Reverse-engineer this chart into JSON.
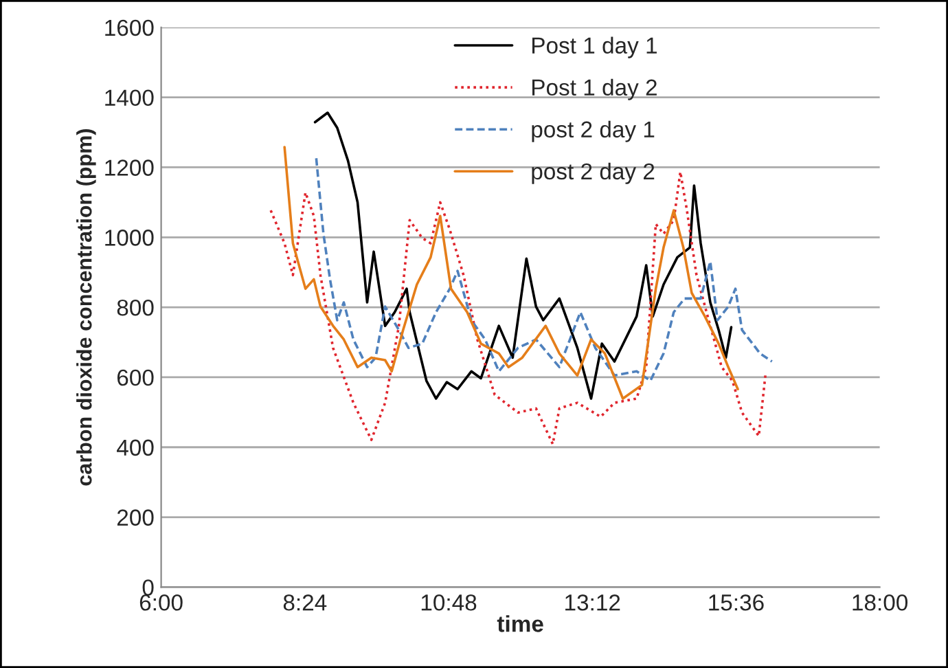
{
  "chart_data": {
    "type": "line",
    "xlabel": "time",
    "ylabel": "carbon dioxide concentration (ppm)",
    "xlim": [
      6,
      18
    ],
    "xticks": [
      {
        "value": 6,
        "label": "6:00"
      },
      {
        "value": 8.4,
        "label": "8:24"
      },
      {
        "value": 10.8,
        "label": "10:48"
      },
      {
        "value": 13.2,
        "label": "13:12"
      },
      {
        "value": 15.6,
        "label": "15:36"
      },
      {
        "value": 18,
        "label": "18:00"
      }
    ],
    "ylim": [
      0,
      1600
    ],
    "yticks": [
      0,
      200,
      400,
      600,
      800,
      1000,
      1200,
      1400,
      1600
    ],
    "grid": "y",
    "legend": "top",
    "marker": "none",
    "series": [
      {
        "name": "Post 1 day 1",
        "color": "#000000",
        "line_style": "solid",
        "x": [
          8.57,
          8.78,
          8.94,
          9.12,
          9.28,
          9.44,
          9.55,
          9.74,
          9.9,
          10.1,
          10.15,
          10.43,
          10.59,
          10.77,
          10.95,
          11.18,
          11.34,
          11.64,
          11.87,
          12.1,
          12.26,
          12.38,
          12.65,
          12.95,
          13.18,
          13.36,
          13.57,
          13.94,
          14.1,
          14.21,
          14.39,
          14.62,
          14.83,
          14.9,
          15.01,
          15.17,
          15.31,
          15.43,
          15.52
        ],
        "values": [
          1329,
          1356,
          1313,
          1219,
          1100,
          814,
          959,
          747,
          786,
          853,
          786,
          590,
          539,
          586,
          566,
          617,
          597,
          747,
          656,
          939,
          802,
          763,
          825,
          684,
          539,
          696,
          645,
          774,
          920,
          774,
          865,
          943,
          971,
          1148,
          983,
          814,
          735,
          656,
          743
        ]
      },
      {
        "name": "Post 1 day 2",
        "color": "#e0262e",
        "line_style": "dotted",
        "x": [
          7.83,
          8.06,
          8.2,
          8.41,
          8.55,
          8.66,
          8.87,
          9.21,
          9.51,
          9.74,
          9.97,
          10.15,
          10.36,
          10.5,
          10.66,
          10.82,
          11.05,
          11.28,
          11.57,
          11.96,
          12.26,
          12.54,
          12.65,
          12.95,
          13.34,
          13.57,
          13.94,
          14.1,
          14.26,
          14.39,
          14.56,
          14.67,
          14.78,
          14.94,
          15.17,
          15.36,
          15.54,
          15.7,
          15.98,
          16.09
        ],
        "values": [
          1077,
          983,
          892,
          1128,
          1061,
          892,
          684,
          527,
          421,
          527,
          747,
          1049,
          998,
          983,
          1100,
          1022,
          892,
          708,
          550,
          499,
          511,
          409,
          511,
          527,
          487,
          527,
          539,
          629,
          1038,
          1010,
          1049,
          1187,
          1077,
          892,
          747,
          629,
          590,
          499,
          432,
          605
        ]
      },
      {
        "name": "post 2 day 1",
        "color": "#4f81bd",
        "line_style": "dashed",
        "x": [
          8.59,
          8.71,
          8.82,
          8.94,
          9.05,
          9.21,
          9.44,
          9.58,
          9.74,
          9.97,
          10.13,
          10.36,
          10.59,
          10.82,
          10.95,
          11.18,
          11.41,
          11.64,
          11.96,
          12.26,
          12.65,
          13.0,
          13.25,
          13.57,
          13.94,
          14.17,
          14.39,
          14.56,
          14.74,
          15.01,
          15.17,
          15.29,
          15.47,
          15.59,
          15.7,
          15.93,
          16.0,
          16.2
        ],
        "values": [
          1226,
          1010,
          880,
          763,
          814,
          708,
          629,
          656,
          802,
          735,
          684,
          696,
          786,
          853,
          904,
          763,
          708,
          617,
          684,
          708,
          629,
          786,
          684,
          605,
          617,
          590,
          668,
          786,
          825,
          825,
          931,
          763,
          802,
          853,
          735,
          684,
          668,
          645
        ]
      },
      {
        "name": "post 2 day 2",
        "color": "#e57e1a",
        "line_style": "solid",
        "x": [
          8.06,
          8.2,
          8.41,
          8.55,
          8.66,
          8.87,
          9.05,
          9.28,
          9.51,
          9.74,
          9.85,
          10.04,
          10.27,
          10.5,
          10.66,
          10.84,
          11.11,
          11.34,
          11.64,
          11.8,
          12.03,
          12.42,
          12.65,
          12.95,
          13.18,
          13.41,
          13.71,
          14.03,
          14.26,
          14.39,
          14.56,
          14.72,
          14.86,
          15.08,
          15.31,
          15.47,
          15.63
        ],
        "values": [
          1258,
          983,
          853,
          880,
          802,
          747,
          708,
          629,
          656,
          649,
          617,
          735,
          865,
          943,
          1061,
          853,
          786,
          696,
          668,
          629,
          656,
          747,
          668,
          605,
          708,
          668,
          539,
          578,
          853,
          971,
          1077,
          971,
          841,
          774,
          696,
          629,
          566
        ]
      }
    ]
  }
}
